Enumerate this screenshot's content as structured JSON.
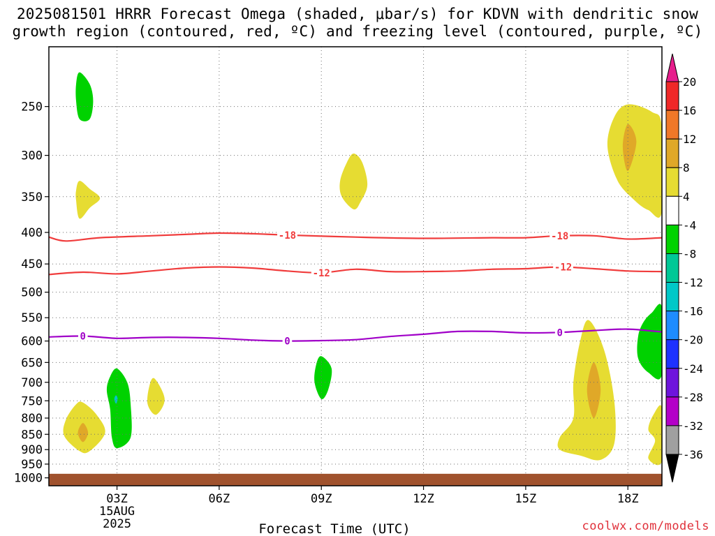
{
  "title": {
    "line1": "2025081501 HRRR Forecast Omega (shaded, μbar/s) for KDVN with dendritic snow",
    "line2": "growth region (contoured, red, ºC) and freezing level (contoured, purple, ºC)"
  },
  "credit": "coolwx.com/models",
  "chart_data": {
    "type": "contour",
    "title": "2025081501 HRRR Forecast Omega (shaded, μbar/s) for KDVN with dendritic snow growth region (contoured, red, ºC) and freezing level (contoured, purple, ºC)",
    "xlabel": "Forecast Time (UTC)",
    "ylabel": "",
    "x_ticks": [
      {
        "hour": 3,
        "label": "03Z",
        "sub": [
          "15AUG",
          "2025"
        ]
      },
      {
        "hour": 6,
        "label": "06Z"
      },
      {
        "hour": 9,
        "label": "09Z"
      },
      {
        "hour": 12,
        "label": "12Z"
      },
      {
        "hour": 15,
        "label": "15Z"
      },
      {
        "hour": 18,
        "label": "18Z"
      }
    ],
    "xlim": [
      1,
      19
    ],
    "y_ticks": [
      250,
      300,
      350,
      400,
      450,
      500,
      550,
      600,
      650,
      700,
      750,
      800,
      850,
      900,
      950,
      1000
    ],
    "ylim": [
      1030,
      200
    ],
    "y_scale": "log-pressure",
    "grid": true,
    "surface_pressure": 985,
    "colorbar": {
      "levels": [
        "20",
        "16",
        "12",
        "8",
        "4",
        "-4",
        "-8",
        "-12",
        "-16",
        "-20",
        "-24",
        "-28",
        "-32",
        "-36"
      ],
      "colors": [
        "#f02828",
        "#f07828",
        "#e0a828",
        "#e6dc32",
        "#ffffff",
        "#00d200",
        "#00c896",
        "#00c8c8",
        "#1e8cff",
        "#1e32ff",
        "#6e14dc",
        "#b400c8",
        "#a0a0a0"
      ],
      "top_color": "#e61e8c",
      "bottom_color": "#000000"
    },
    "contours": [
      {
        "value": -18,
        "color": "#f03c3c",
        "label": "-18",
        "points": [
          [
            1.0,
            407
          ],
          [
            1.5,
            413
          ],
          [
            2.5,
            408
          ],
          [
            4,
            405
          ],
          [
            5,
            403
          ],
          [
            6,
            401
          ],
          [
            7,
            402
          ],
          [
            8,
            404
          ],
          [
            10,
            407
          ],
          [
            12,
            409
          ],
          [
            14,
            408
          ],
          [
            15,
            408
          ],
          [
            16,
            405
          ],
          [
            17,
            405
          ],
          [
            18,
            410
          ],
          [
            19,
            408
          ]
        ],
        "label_hours": [
          8.0,
          16.0
        ]
      },
      {
        "value": -12,
        "color": "#f03c3c",
        "label": "-12",
        "points": [
          [
            1.0,
            468
          ],
          [
            2,
            464
          ],
          [
            3,
            467
          ],
          [
            4,
            462
          ],
          [
            5,
            457
          ],
          [
            6,
            455
          ],
          [
            7,
            457
          ],
          [
            8,
            462
          ],
          [
            9,
            465
          ],
          [
            10,
            459
          ],
          [
            11,
            463
          ],
          [
            12,
            463
          ],
          [
            13,
            462
          ],
          [
            14,
            459
          ],
          [
            15,
            458
          ],
          [
            16,
            455
          ],
          [
            17,
            458
          ],
          [
            18,
            462
          ],
          [
            19,
            463
          ]
        ],
        "label_hours": [
          9.0,
          16.1
        ]
      },
      {
        "value": 0,
        "color": "#a000c8",
        "label": "0",
        "points": [
          [
            1.0,
            591
          ],
          [
            2,
            589
          ],
          [
            3,
            594
          ],
          [
            4,
            592
          ],
          [
            5,
            592
          ],
          [
            6,
            594
          ],
          [
            7,
            598
          ],
          [
            8,
            600
          ],
          [
            9,
            599
          ],
          [
            10,
            597
          ],
          [
            11,
            590
          ],
          [
            12,
            585
          ],
          [
            13,
            579
          ],
          [
            14,
            579
          ],
          [
            15,
            582
          ],
          [
            16,
            581
          ],
          [
            17,
            577
          ],
          [
            18,
            574
          ],
          [
            19,
            580
          ]
        ],
        "label_hours": [
          2.0,
          8.0,
          16.0
        ]
      }
    ],
    "shaded_regions": [
      {
        "color": "#00d200",
        "range": "-8 to -4",
        "poly": [
          [
            1.9,
            220
          ],
          [
            2.2,
            230
          ],
          [
            2.3,
            245
          ],
          [
            2.2,
            262
          ],
          [
            1.9,
            262
          ],
          [
            1.8,
            245
          ],
          [
            1.8,
            230
          ]
        ]
      },
      {
        "color": "#e6dc32",
        "range": "4 to 8",
        "poly": [
          [
            1.9,
            330
          ],
          [
            2.2,
            340
          ],
          [
            2.5,
            352
          ],
          [
            2.2,
            365
          ],
          [
            1.9,
            380
          ],
          [
            1.8,
            355
          ],
          [
            1.8,
            342
          ]
        ]
      },
      {
        "color": "#e6dc32",
        "range": "4 to 8",
        "poly": [
          [
            9.95,
            298
          ],
          [
            10.2,
            308
          ],
          [
            10.35,
            335
          ],
          [
            10.15,
            357
          ],
          [
            9.95,
            367
          ],
          [
            9.6,
            350
          ],
          [
            9.55,
            330
          ],
          [
            9.75,
            308
          ]
        ]
      },
      {
        "color": "#e6dc32",
        "range": "4 to 8",
        "poly": [
          [
            18.0,
            248
          ],
          [
            18.7,
            255
          ],
          [
            19.0,
            270
          ],
          [
            19.0,
            370
          ],
          [
            18.6,
            368
          ],
          [
            18.2,
            355
          ],
          [
            17.7,
            330
          ],
          [
            17.4,
            290
          ],
          [
            17.6,
            260
          ]
        ]
      },
      {
        "color": "#e0a828",
        "range": "8 to 12",
        "poly": [
          [
            18.0,
            267
          ],
          [
            18.25,
            285
          ],
          [
            18.0,
            318
          ],
          [
            17.85,
            290
          ]
        ]
      },
      {
        "color": "#e6dc32",
        "range": "4 to 8",
        "poly": [
          [
            2.0,
            755
          ],
          [
            2.4,
            790
          ],
          [
            2.65,
            845
          ],
          [
            2.2,
            905
          ],
          [
            1.9,
            905
          ],
          [
            1.45,
            855
          ],
          [
            1.5,
            805
          ],
          [
            1.8,
            760
          ]
        ]
      },
      {
        "color": "#e0a828",
        "range": "8 to 12",
        "poly": [
          [
            2.0,
            815
          ],
          [
            2.15,
            845
          ],
          [
            2.0,
            875
          ],
          [
            1.85,
            845
          ]
        ]
      },
      {
        "color": "#00d200",
        "range": "-8 to -4",
        "poly": [
          [
            3.0,
            665
          ],
          [
            3.3,
            700
          ],
          [
            3.4,
            760
          ],
          [
            3.4,
            860
          ],
          [
            3.0,
            895
          ],
          [
            2.85,
            860
          ],
          [
            2.8,
            775
          ],
          [
            2.7,
            720
          ],
          [
            2.8,
            685
          ]
        ]
      },
      {
        "color": "#00c8c8",
        "range": "-12 to -8",
        "poly": [
          [
            2.97,
            735
          ],
          [
            3.02,
            745
          ],
          [
            2.97,
            758
          ],
          [
            2.92,
            745
          ]
        ]
      },
      {
        "color": "#e6dc32",
        "range": "4 to 8",
        "poly": [
          [
            4.1,
            690
          ],
          [
            4.4,
            745
          ],
          [
            4.15,
            790
          ],
          [
            3.9,
            760
          ],
          [
            3.95,
            710
          ]
        ]
      },
      {
        "color": "#00d200",
        "range": "-8 to -4",
        "poly": [
          [
            9.0,
            635
          ],
          [
            9.3,
            665
          ],
          [
            9.2,
            720
          ],
          [
            9.0,
            745
          ],
          [
            8.8,
            700
          ],
          [
            8.85,
            655
          ]
        ]
      },
      {
        "color": "#e6dc32",
        "range": "4 to 8",
        "poly": [
          [
            16.85,
            555
          ],
          [
            17.3,
            620
          ],
          [
            17.6,
            750
          ],
          [
            17.6,
            880
          ],
          [
            17.2,
            935
          ],
          [
            16.6,
            920
          ],
          [
            16.0,
            900
          ],
          [
            16.0,
            860
          ],
          [
            16.4,
            800
          ],
          [
            16.4,
            700
          ],
          [
            16.6,
            600
          ]
        ]
      },
      {
        "color": "#e0a828",
        "range": "8 to 12",
        "poly": [
          [
            17.0,
            650
          ],
          [
            17.2,
            720
          ],
          [
            17.0,
            800
          ],
          [
            16.8,
            720
          ]
        ]
      },
      {
        "color": "#00d200",
        "range": "-8 to -4",
        "poly": [
          [
            19.0,
            530
          ],
          [
            19.0,
            680
          ],
          [
            18.6,
            675
          ],
          [
            18.3,
            640
          ],
          [
            18.3,
            590
          ],
          [
            18.45,
            560
          ],
          [
            18.7,
            540
          ]
        ]
      },
      {
        "color": "#e6dc32",
        "range": "4 to 8",
        "poly": [
          [
            19.0,
            770
          ],
          [
            19.0,
            940
          ],
          [
            18.6,
            930
          ],
          [
            18.8,
            870
          ],
          [
            18.6,
            835
          ],
          [
            18.75,
            790
          ]
        ]
      }
    ]
  }
}
